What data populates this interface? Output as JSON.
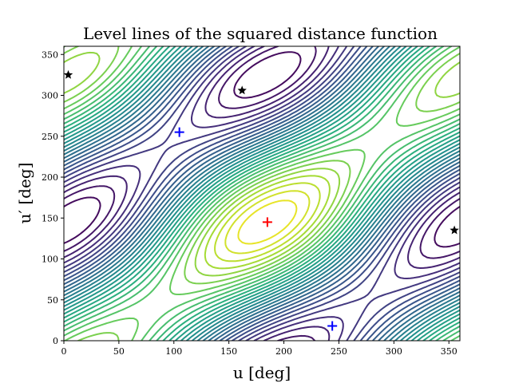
{
  "chart_data": {
    "type": "contour",
    "title": "Level lines of the squared distance function",
    "xlabel": "u [deg]",
    "ylabel": "u′ [deg]",
    "xlim": [
      0,
      360
    ],
    "ylim": [
      0,
      360
    ],
    "x_ticks": [
      0,
      50,
      100,
      150,
      200,
      250,
      300,
      350
    ],
    "y_ticks": [
      0,
      50,
      100,
      150,
      200,
      250,
      300,
      350
    ],
    "grid": false,
    "colormap": "viridis",
    "colormap_stops": [
      "#440154",
      "#472c7a",
      "#3b528b",
      "#2c728e",
      "#21908d",
      "#27ad81",
      "#5cc863",
      "#aadc32",
      "#fde725"
    ],
    "minimum": {
      "u": 185,
      "u_prime": 145
    },
    "markers": [
      {
        "kind": "plus",
        "color": "#ff0000",
        "u": 185,
        "u_prime": 145
      },
      {
        "kind": "plus",
        "color": "#0000ff",
        "u": 105,
        "u_prime": 255
      },
      {
        "kind": "plus",
        "color": "#0000ff",
        "u": 244,
        "u_prime": 18
      },
      {
        "kind": "star",
        "color": "#000000",
        "u": 4,
        "u_prime": 325
      },
      {
        "kind": "star",
        "color": "#000000",
        "u": 162,
        "u_prime": 306
      },
      {
        "kind": "star",
        "color": "#000000",
        "u": 355,
        "u_prime": 135
      }
    ]
  }
}
